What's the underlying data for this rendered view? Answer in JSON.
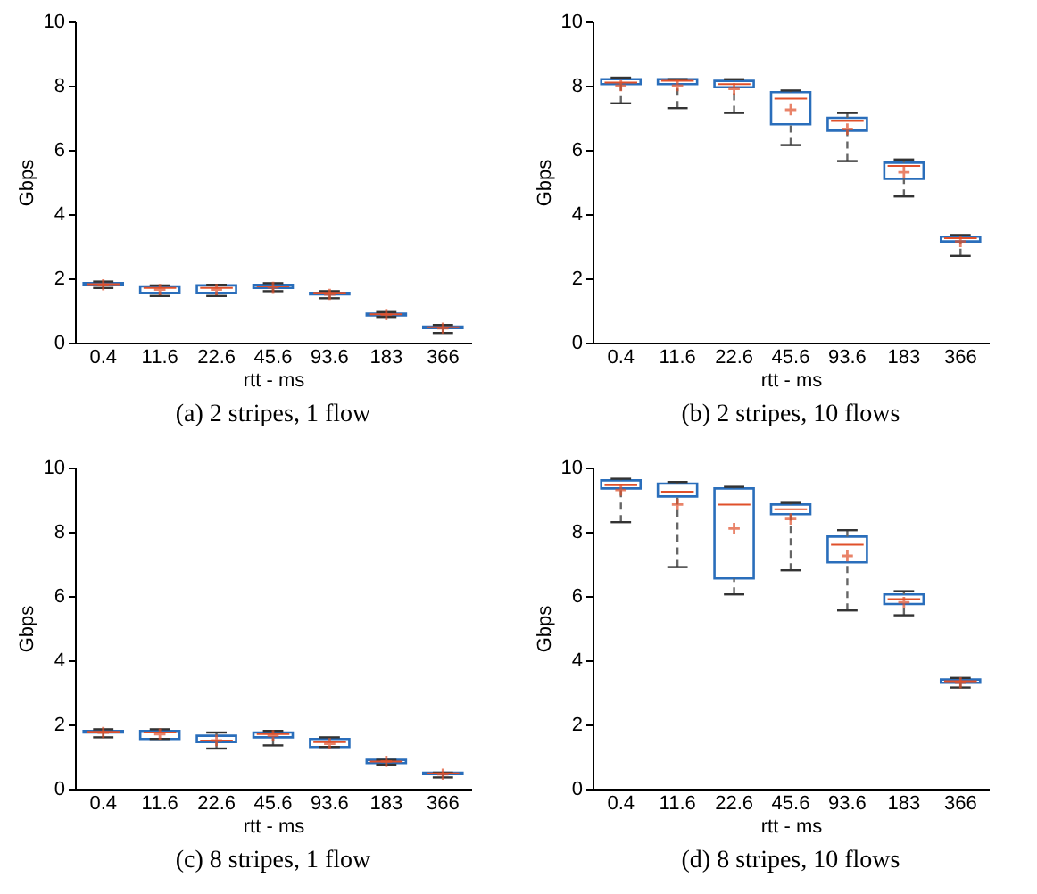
{
  "chart_data": [
    {
      "type": "box",
      "title": "(a) 2 stripes, 1 flow",
      "xlabel": "rtt - ms",
      "ylabel": "Gbps",
      "categories": [
        "0.4",
        "11.6",
        "22.6",
        "45.6",
        "93.6",
        "183",
        "366"
      ],
      "ylim": [
        0,
        10
      ],
      "yticks": [
        0,
        2,
        4,
        6,
        8,
        10
      ],
      "series": [
        {
          "color": "#2a6ebb",
          "boxes": [
            {
              "low": 1.7,
              "q1": 1.8,
              "median": 1.82,
              "q3": 1.85,
              "high": 1.9,
              "mean": 1.8
            },
            {
              "low": 1.45,
              "q1": 1.55,
              "median": 1.7,
              "q3": 1.75,
              "high": 1.78,
              "mean": 1.65
            },
            {
              "low": 1.45,
              "q1": 1.55,
              "median": 1.7,
              "q3": 1.78,
              "high": 1.8,
              "mean": 1.65
            },
            {
              "low": 1.6,
              "q1": 1.7,
              "median": 1.75,
              "q3": 1.8,
              "high": 1.85,
              "mean": 1.72
            },
            {
              "low": 1.38,
              "q1": 1.5,
              "median": 1.55,
              "q3": 1.55,
              "high": 1.6,
              "mean": 1.5
            },
            {
              "low": 0.8,
              "q1": 0.85,
              "median": 0.88,
              "q3": 0.9,
              "high": 0.95,
              "mean": 0.87
            },
            {
              "low": 0.3,
              "q1": 0.45,
              "median": 0.48,
              "q3": 0.5,
              "high": 0.55,
              "mean": 0.45
            }
          ]
        }
      ]
    },
    {
      "type": "box",
      "title": "(b) 2 stripes, 10 flows",
      "xlabel": "rtt - ms",
      "ylabel": "Gbps",
      "categories": [
        "0.4",
        "11.6",
        "22.6",
        "45.6",
        "93.6",
        "183",
        "366"
      ],
      "ylim": [
        0,
        10
      ],
      "yticks": [
        0,
        2,
        4,
        6,
        8,
        10
      ],
      "series": [
        {
          "color": "#2a6ebb",
          "boxes": [
            {
              "low": 7.45,
              "q1": 8.05,
              "median": 8.1,
              "q3": 8.2,
              "high": 8.25,
              "mean": 8.0
            },
            {
              "low": 7.3,
              "q1": 8.05,
              "median": 8.15,
              "q3": 8.2,
              "high": 8.2,
              "mean": 8.0
            },
            {
              "low": 7.15,
              "q1": 7.95,
              "median": 8.05,
              "q3": 8.15,
              "high": 8.2,
              "mean": 7.9
            },
            {
              "low": 6.15,
              "q1": 6.8,
              "median": 7.6,
              "q3": 7.8,
              "high": 7.85,
              "mean": 7.25
            },
            {
              "low": 5.65,
              "q1": 6.6,
              "median": 6.9,
              "q3": 7.0,
              "high": 7.15,
              "mean": 6.65
            },
            {
              "low": 4.55,
              "q1": 5.1,
              "median": 5.5,
              "q3": 5.6,
              "high": 5.7,
              "mean": 5.3
            },
            {
              "low": 2.7,
              "q1": 3.15,
              "median": 3.25,
              "q3": 3.3,
              "high": 3.35,
              "mean": 3.15
            }
          ]
        }
      ]
    },
    {
      "type": "box",
      "title": "(c) 8 stripes, 1 flow",
      "xlabel": "rtt - ms",
      "ylabel": "Gbps",
      "categories": [
        "0.4",
        "11.6",
        "22.6",
        "45.6",
        "93.6",
        "183",
        "366"
      ],
      "ylim": [
        0,
        10
      ],
      "yticks": [
        0,
        2,
        4,
        6,
        8,
        10
      ],
      "series": [
        {
          "color": "#2a6ebb",
          "boxes": [
            {
              "low": 1.6,
              "q1": 1.75,
              "median": 1.77,
              "q3": 1.8,
              "high": 1.85,
              "mean": 1.75
            },
            {
              "low": 1.55,
              "q1": 1.55,
              "median": 1.75,
              "q3": 1.8,
              "high": 1.85,
              "mean": 1.7
            },
            {
              "low": 1.25,
              "q1": 1.45,
              "median": 1.5,
              "q3": 1.65,
              "high": 1.75,
              "mean": 1.5
            },
            {
              "low": 1.35,
              "q1": 1.6,
              "median": 1.7,
              "q3": 1.75,
              "high": 1.8,
              "mean": 1.65
            },
            {
              "low": 1.3,
              "q1": 1.3,
              "median": 1.45,
              "q3": 1.55,
              "high": 1.6,
              "mean": 1.4
            },
            {
              "low": 0.75,
              "q1": 0.8,
              "median": 0.85,
              "q3": 0.9,
              "high": 0.9,
              "mean": 0.85
            },
            {
              "low": 0.35,
              "q1": 0.45,
              "median": 0.48,
              "q3": 0.5,
              "high": 0.5,
              "mean": 0.45
            }
          ]
        }
      ]
    },
    {
      "type": "box",
      "title": "(d) 8 stripes, 10 flows",
      "xlabel": "rtt - ms",
      "ylabel": "Gbps",
      "categories": [
        "0.4",
        "11.6",
        "22.6",
        "45.6",
        "93.6",
        "183",
        "366"
      ],
      "ylim": [
        0,
        10
      ],
      "yticks": [
        0,
        2,
        4,
        6,
        8,
        10
      ],
      "series": [
        {
          "color": "#2a6ebb",
          "boxes": [
            {
              "low": 8.3,
              "q1": 9.35,
              "median": 9.45,
              "q3": 9.6,
              "high": 9.65,
              "mean": 9.3
            },
            {
              "low": 6.9,
              "q1": 9.1,
              "median": 9.25,
              "q3": 9.5,
              "high": 9.55,
              "mean": 8.85
            },
            {
              "low": 6.05,
              "q1": 6.55,
              "median": 8.85,
              "q3": 9.35,
              "high": 9.4,
              "mean": 8.1
            },
            {
              "low": 6.8,
              "q1": 8.55,
              "median": 8.7,
              "q3": 8.85,
              "high": 8.9,
              "mean": 8.4
            },
            {
              "low": 5.55,
              "q1": 7.05,
              "median": 7.6,
              "q3": 7.85,
              "high": 8.05,
              "mean": 7.25
            },
            {
              "low": 5.4,
              "q1": 5.75,
              "median": 5.9,
              "q3": 6.05,
              "high": 6.15,
              "mean": 5.8
            },
            {
              "low": 3.15,
              "q1": 3.3,
              "median": 3.35,
              "q3": 3.4,
              "high": 3.45,
              "mean": 3.3
            }
          ]
        }
      ]
    }
  ]
}
